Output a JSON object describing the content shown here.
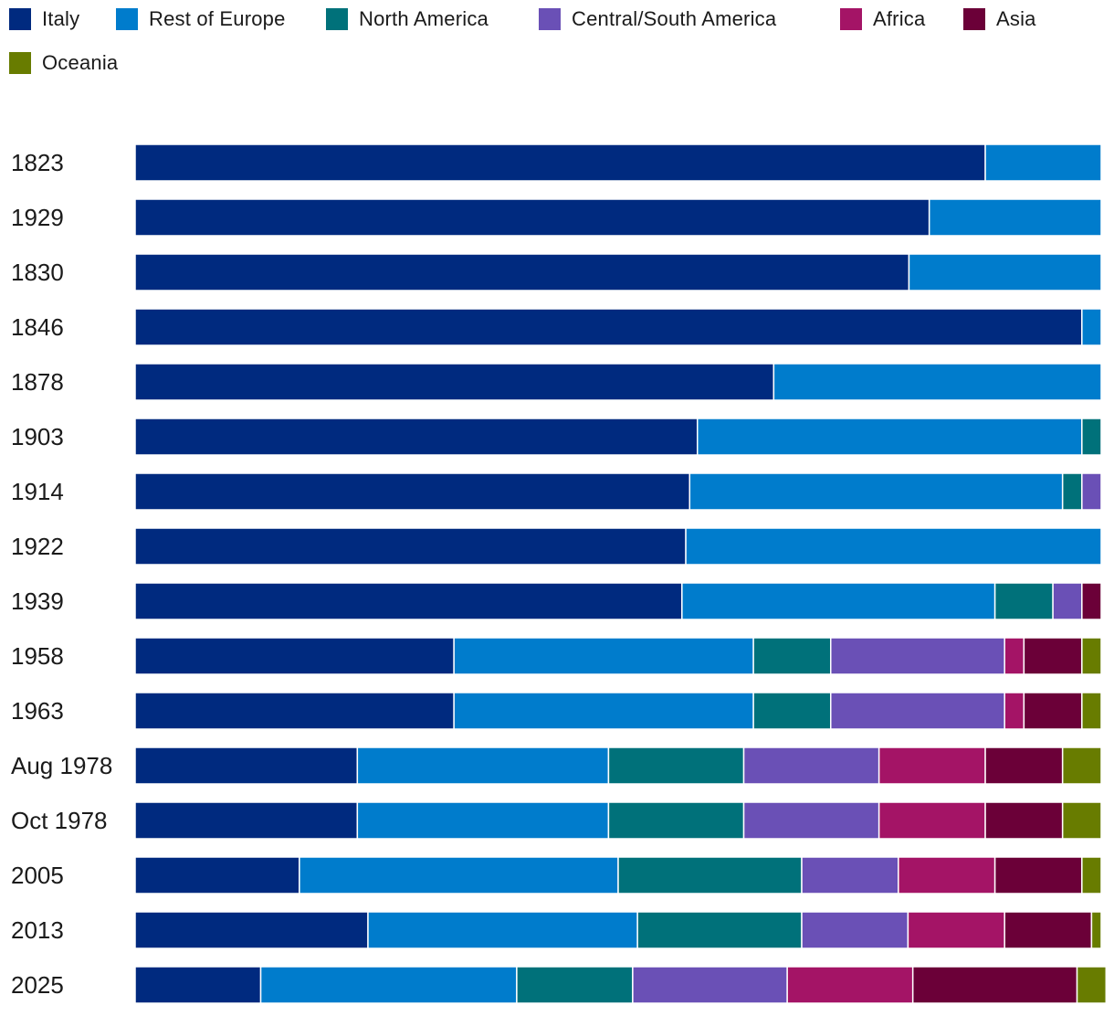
{
  "chart_data": {
    "type": "bar",
    "orientation": "horizontal",
    "stacked": true,
    "normalized_percent": true,
    "legend_position": "top-left",
    "categories": [
      "1823",
      "1929",
      "1830",
      "1846",
      "1878",
      "1903",
      "1914",
      "1922",
      "1939",
      "1958",
      "1963",
      "Aug 1978",
      "Oct 1978",
      "2005",
      "2013",
      "2025"
    ],
    "series": [
      {
        "name": "Italy",
        "color": "#002a7f",
        "values": [
          88,
          82.2,
          80.1,
          98,
          66.1,
          58.2,
          57.4,
          57,
          56.6,
          33,
          33,
          23,
          23,
          17,
          24.1,
          13
        ]
      },
      {
        "name": "Rest of Europe",
        "color": "#007ccc",
        "values": [
          12,
          17.8,
          19.9,
          2,
          33.9,
          39.8,
          38.6,
          43,
          32.4,
          31,
          31,
          26,
          26,
          33,
          27.9,
          26.5
        ]
      },
      {
        "name": "North America",
        "color": "#00717a",
        "values": [
          0,
          0,
          0,
          0,
          0,
          2,
          2,
          0,
          6,
          8,
          8,
          14,
          14,
          19,
          17,
          12
        ]
      },
      {
        "name": "Central/South America",
        "color": "#6a50b6",
        "values": [
          0,
          0,
          0,
          0,
          0,
          0,
          2,
          0,
          3,
          18,
          18,
          14,
          14,
          10,
          11,
          16
        ]
      },
      {
        "name": "Africa",
        "color": "#a41466",
        "values": [
          0,
          0,
          0,
          0,
          0,
          0,
          0,
          0,
          0,
          2,
          2,
          11,
          11,
          10,
          10,
          13
        ]
      },
      {
        "name": "Asia",
        "color": "#6b0038",
        "values": [
          0,
          0,
          0,
          0,
          0,
          0,
          0,
          0,
          2,
          6,
          6,
          8,
          8,
          9,
          9,
          17
        ]
      },
      {
        "name": "Oceania",
        "color": "#687c00",
        "values": [
          0,
          0,
          0,
          0,
          0,
          0,
          0,
          0,
          0,
          2,
          2,
          4,
          4,
          2,
          1,
          3
        ]
      }
    ],
    "xlim": [
      0,
      100
    ],
    "title": "",
    "xlabel": "",
    "ylabel": ""
  }
}
